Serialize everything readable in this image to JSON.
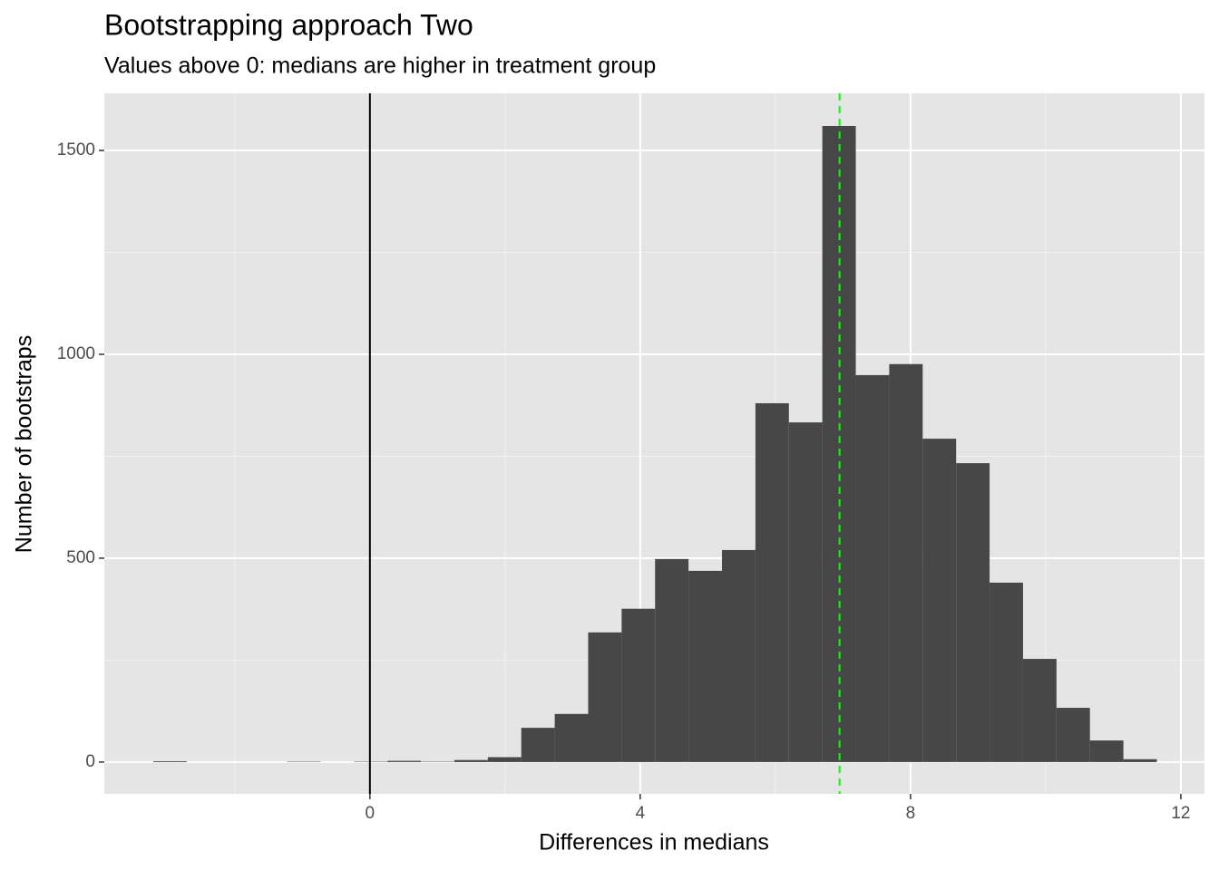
{
  "chart_data": {
    "type": "histogram",
    "title": "Bootstrapping approach Two",
    "subtitle": "Values above 0: medians are higher in treatment group",
    "x_label": "Differences in medians",
    "y_label": "Number of bootstraps",
    "bins": [
      -3.205,
      -2.71,
      -2.215,
      -1.72,
      -1.225,
      -0.73,
      -0.235,
      0.26,
      0.755,
      1.25,
      1.745,
      2.24,
      2.735,
      3.23,
      3.725,
      4.22,
      4.715,
      5.21,
      5.705,
      6.2,
      6.695,
      7.19,
      7.685,
      8.18,
      8.675,
      9.17,
      9.665,
      10.16,
      10.655,
      11.15,
      11.645
    ],
    "values": [
      2,
      0,
      0,
      0,
      1,
      0,
      1,
      3,
      1,
      5,
      12,
      84,
      118,
      318,
      376,
      498,
      469,
      520,
      880,
      833,
      1560,
      949,
      976,
      793,
      733,
      440,
      253,
      133,
      53,
      7
    ],
    "color": "#474747",
    "xlim": [
      -3.93,
      12.35
    ],
    "xticks": [
      0,
      4,
      8,
      12
    ],
    "xminor_ticks": [
      -2,
      2,
      6,
      10
    ],
    "ylim": [
      -78,
      1640
    ],
    "yticks": [
      0,
      500,
      1000,
      1500
    ],
    "yminor_ticks": [
      250,
      750,
      1250
    ],
    "grid": true,
    "vlines": [
      {
        "x": 0,
        "color": "#000000",
        "dash": false
      },
      {
        "x": 6.95,
        "color": "#00ff00",
        "dash": true
      }
    ]
  }
}
